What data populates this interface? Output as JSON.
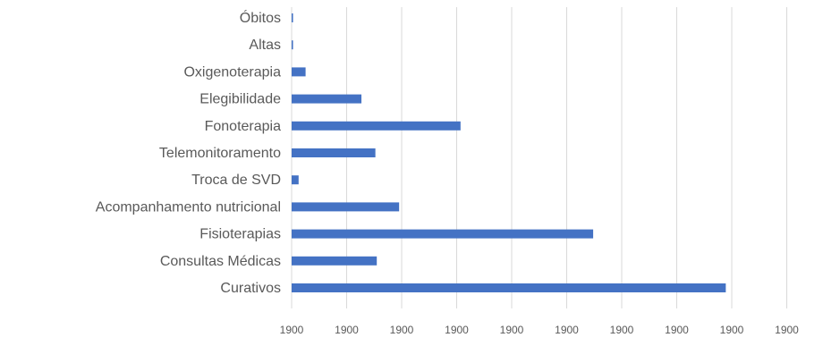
{
  "chart_data": {
    "type": "bar",
    "orientation": "horizontal",
    "categories": [
      "Óbitos",
      "Altas",
      "Oxigenoterapia",
      "Elegibilidade",
      "Fonoterapia",
      "Telemonitoramento",
      "Troca de SVD",
      "Acompanhamento nutricional",
      "Fisioterapias",
      "Consultas Médicas",
      "Curativos"
    ],
    "series": [
      {
        "values": [
          1,
          1,
          10,
          50,
          121,
          60,
          5,
          77,
          216,
          61,
          311
        ]
      }
    ],
    "xlim": [
      0,
      355
    ],
    "tick_labels": [
      "1900",
      "1900",
      "1900",
      "1900",
      "1900",
      "1900",
      "1900",
      "1900",
      "1900",
      "1900"
    ],
    "grid": true,
    "legend": "none",
    "colors": {
      "bar": "#4472c4",
      "grid": "#d9d9d9",
      "text": "#595959"
    }
  }
}
